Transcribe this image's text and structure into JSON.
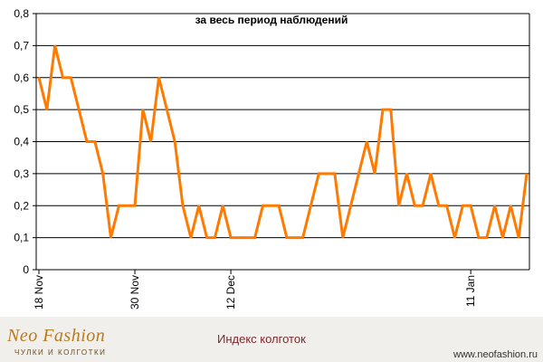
{
  "chart_data": {
    "type": "line",
    "title": "за весь период наблюдений",
    "xlabel": "",
    "ylabel": "",
    "ylim": [
      0,
      0.8
    ],
    "yticks": [
      "0",
      "0,1",
      "0,2",
      "0,3",
      "0,4",
      "0,5",
      "0,6",
      "0,7",
      "0,8"
    ],
    "grid": true,
    "legend": "none",
    "line_color": "#ff7a00",
    "x_tick_labels": [
      {
        "index": 0,
        "label": "18 Nov"
      },
      {
        "index": 12,
        "label": "30 Nov"
      },
      {
        "index": 24,
        "label": "12 Dec"
      },
      {
        "index": 54,
        "label": "11 Jan"
      }
    ],
    "series": [
      {
        "values": [
          0.6,
          0.5,
          0.7,
          0.6,
          0.6,
          0.5,
          0.4,
          0.4,
          0.3,
          0.1,
          0.2,
          0.2,
          0.2,
          0.5,
          0.4,
          0.6,
          0.5,
          0.4,
          0.2,
          0.1,
          0.2,
          0.1,
          0.1,
          0.2,
          0.1,
          0.1,
          0.1,
          0.1,
          0.2,
          0.2,
          0.2,
          0.1,
          0.1,
          0.1,
          0.2,
          0.3,
          0.3,
          0.3,
          0.1,
          0.2,
          0.3,
          0.4,
          0.3,
          0.5,
          0.5,
          0.2,
          0.3,
          0.2,
          0.2,
          0.3,
          0.2,
          0.2,
          0.1,
          0.2,
          0.2,
          0.1,
          0.1,
          0.2,
          0.1,
          0.2,
          0.1,
          0.3
        ]
      }
    ]
  },
  "footer": {
    "logo": "Neo Fashion",
    "logo_sub": "ЧУЛКИ И КОЛГОТКИ",
    "title": "Индекс колготок",
    "url": "www.neofashion.ru"
  }
}
